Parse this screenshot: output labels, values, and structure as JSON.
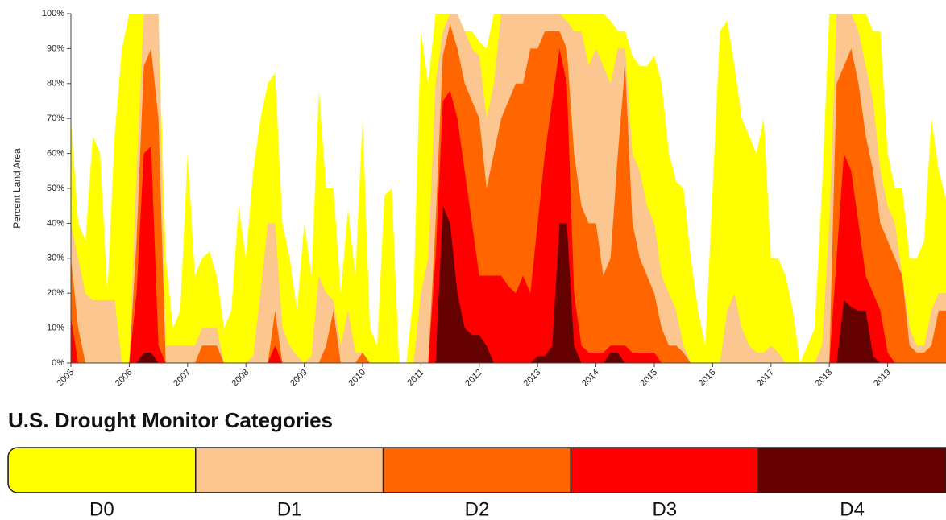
{
  "chart_data": {
    "type": "area",
    "y_label": "Percent Land Area",
    "legend_title": "U.S. Drought Monitor Categories",
    "x": [
      2005,
      2005.125,
      2005.25,
      2005.375,
      2005.5,
      2005.625,
      2005.75,
      2005.875,
      2006,
      2006.125,
      2006.25,
      2006.375,
      2006.5,
      2006.625,
      2006.75,
      2006.875,
      2007,
      2007.125,
      2007.25,
      2007.375,
      2007.5,
      2007.625,
      2007.75,
      2007.875,
      2008,
      2008.125,
      2008.25,
      2008.375,
      2008.5,
      2008.625,
      2008.75,
      2008.875,
      2009,
      2009.125,
      2009.25,
      2009.375,
      2009.5,
      2009.625,
      2009.75,
      2009.875,
      2010,
      2010.125,
      2010.25,
      2010.375,
      2010.5,
      2010.625,
      2010.75,
      2010.875,
      2011,
      2011.125,
      2011.25,
      2011.375,
      2011.5,
      2011.625,
      2011.75,
      2011.875,
      2012,
      2012.125,
      2012.25,
      2012.375,
      2012.5,
      2012.625,
      2012.75,
      2012.875,
      2013,
      2013.125,
      2013.25,
      2013.375,
      2013.5,
      2013.625,
      2013.75,
      2013.875,
      2014,
      2014.125,
      2014.25,
      2014.375,
      2014.5,
      2014.625,
      2014.75,
      2014.875,
      2015,
      2015.125,
      2015.25,
      2015.375,
      2015.5,
      2015.625,
      2015.75,
      2015.875,
      2016,
      2016.125,
      2016.25,
      2016.375,
      2016.5,
      2016.625,
      2016.75,
      2016.875,
      2017,
      2017.125,
      2017.25,
      2017.375,
      2017.5,
      2017.625,
      2017.75,
      2017.875,
      2018,
      2018.125,
      2018.25,
      2018.375,
      2018.5,
      2018.625,
      2018.75,
      2018.875,
      2019,
      2019.125,
      2019.25,
      2019.375,
      2019.5,
      2019.625,
      2019.75,
      2019.875,
      2020
    ],
    "series": [
      {
        "name": "D0",
        "color": "#ffff00",
        "values": [
          70,
          40,
          35,
          65,
          60,
          20,
          65,
          90,
          100,
          100,
          100,
          100,
          100,
          30,
          10,
          15,
          60,
          25,
          30,
          32,
          25,
          10,
          15,
          45,
          30,
          55,
          70,
          80,
          83,
          40,
          30,
          15,
          40,
          25,
          78,
          50,
          50,
          20,
          44,
          25,
          70,
          10,
          5,
          48,
          50,
          0,
          0,
          20,
          95,
          80,
          100,
          100,
          100,
          100,
          95,
          95,
          92,
          90,
          100,
          100,
          100,
          100,
          100,
          100,
          100,
          100,
          100,
          100,
          100,
          100,
          100,
          100,
          100,
          100,
          98,
          95,
          95,
          88,
          85,
          85,
          88,
          80,
          60,
          52,
          50,
          30,
          15,
          5,
          50,
          95,
          98,
          85,
          70,
          65,
          60,
          70,
          30,
          30,
          25,
          15,
          0,
          5,
          10,
          50,
          100,
          100,
          100,
          100,
          100,
          100,
          95,
          95,
          60,
          50,
          50,
          30,
          30,
          35,
          70,
          55,
          47
        ]
      },
      {
        "name": "D1",
        "color": "#fcc691",
        "values": [
          40,
          30,
          20,
          18,
          18,
          18,
          18,
          0,
          0,
          55,
          100,
          100,
          100,
          5,
          5,
          5,
          5,
          5,
          10,
          10,
          10,
          0,
          0,
          0,
          0,
          2,
          20,
          40,
          40,
          10,
          5,
          2,
          0,
          2,
          25,
          20,
          18,
          5,
          15,
          3,
          3,
          0,
          0,
          0,
          0,
          0,
          0,
          0,
          20,
          30,
          80,
          95,
          100,
          100,
          95,
          90,
          88,
          70,
          80,
          100,
          100,
          100,
          100,
          100,
          100,
          100,
          100,
          100,
          98,
          95,
          95,
          85,
          90,
          85,
          80,
          90,
          90,
          60,
          55,
          45,
          40,
          25,
          20,
          15,
          5,
          0,
          0,
          0,
          0,
          0,
          15,
          20,
          10,
          5,
          3,
          3,
          5,
          3,
          0,
          0,
          0,
          0,
          0,
          5,
          40,
          100,
          100,
          100,
          95,
          85,
          75,
          55,
          45,
          40,
          25,
          10,
          5,
          5,
          15,
          20,
          20
        ]
      },
      {
        "name": "D2",
        "color": "#ff6600",
        "values": [
          30,
          10,
          0,
          0,
          0,
          0,
          0,
          0,
          0,
          35,
          85,
          90,
          70,
          0,
          0,
          0,
          0,
          0,
          5,
          5,
          5,
          0,
          0,
          0,
          0,
          0,
          0,
          0,
          15,
          0,
          0,
          0,
          0,
          0,
          0,
          5,
          15,
          0,
          0,
          0,
          3,
          0,
          0,
          0,
          0,
          0,
          0,
          0,
          0,
          0,
          40,
          88,
          97,
          90,
          80,
          75,
          70,
          50,
          60,
          70,
          75,
          80,
          80,
          90,
          90,
          95,
          95,
          95,
          90,
          60,
          45,
          40,
          40,
          25,
          30,
          60,
          85,
          40,
          30,
          25,
          20,
          10,
          5,
          5,
          3,
          0,
          0,
          0,
          0,
          0,
          0,
          0,
          0,
          0,
          0,
          0,
          0,
          0,
          0,
          0,
          0,
          0,
          0,
          0,
          0,
          80,
          85,
          90,
          80,
          65,
          55,
          40,
          35,
          30,
          25,
          5,
          3,
          3,
          5,
          15,
          15
        ]
      },
      {
        "name": "D3",
        "color": "#ff0000",
        "values": [
          13,
          0,
          0,
          0,
          0,
          0,
          0,
          0,
          0,
          20,
          60,
          62,
          5,
          0,
          0,
          0,
          0,
          0,
          0,
          0,
          0,
          0,
          0,
          0,
          0,
          0,
          0,
          0,
          5,
          0,
          0,
          0,
          0,
          0,
          0,
          0,
          0,
          0,
          0,
          0,
          0,
          0,
          0,
          0,
          0,
          0,
          0,
          0,
          0,
          0,
          30,
          75,
          78,
          70,
          55,
          40,
          25,
          25,
          25,
          25,
          22,
          20,
          25,
          20,
          40,
          60,
          75,
          90,
          80,
          20,
          5,
          3,
          3,
          3,
          5,
          5,
          5,
          3,
          3,
          3,
          3,
          0,
          0,
          0,
          0,
          0,
          0,
          0,
          0,
          0,
          0,
          0,
          0,
          0,
          0,
          0,
          0,
          0,
          0,
          0,
          0,
          0,
          0,
          0,
          0,
          30,
          60,
          55,
          40,
          25,
          20,
          15,
          3,
          0,
          0,
          0,
          0,
          0,
          0,
          0,
          0
        ]
      },
      {
        "name": "D4",
        "color": "#650000",
        "values": [
          0,
          0,
          0,
          0,
          0,
          0,
          0,
          0,
          0,
          0,
          3,
          3,
          0,
          0,
          0,
          0,
          0,
          0,
          0,
          0,
          0,
          0,
          0,
          0,
          0,
          0,
          0,
          0,
          0,
          0,
          0,
          0,
          0,
          0,
          0,
          0,
          0,
          0,
          0,
          0,
          0,
          0,
          0,
          0,
          0,
          0,
          0,
          0,
          0,
          0,
          0,
          45,
          40,
          20,
          10,
          8,
          8,
          5,
          0,
          0,
          0,
          0,
          0,
          0,
          2,
          2,
          5,
          40,
          40,
          5,
          0,
          0,
          0,
          0,
          3,
          3,
          0,
          0,
          0,
          0,
          0,
          0,
          0,
          0,
          0,
          0,
          0,
          0,
          0,
          0,
          0,
          0,
          0,
          0,
          0,
          0,
          0,
          0,
          0,
          0,
          0,
          0,
          0,
          0,
          0,
          0,
          18,
          16,
          15,
          15,
          2,
          0,
          0,
          0,
          0,
          0,
          0,
          0,
          0,
          0,
          0
        ]
      }
    ],
    "xlim": [
      2005,
      2020
    ],
    "xticks": [
      2005,
      2006,
      2007,
      2008,
      2009,
      2010,
      2011,
      2012,
      2013,
      2014,
      2015,
      2016,
      2017,
      2018,
      2019
    ],
    "ylim": [
      0,
      100
    ],
    "yticks": [
      {
        "value": 0,
        "label": "0%"
      },
      {
        "value": 10,
        "label": "10%"
      },
      {
        "value": 20,
        "label": "20%"
      },
      {
        "value": 30,
        "label": "30%"
      },
      {
        "value": 40,
        "label": "40%"
      },
      {
        "value": 50,
        "label": "50%"
      },
      {
        "value": 60,
        "label": "60%"
      },
      {
        "value": 70,
        "label": "70%"
      },
      {
        "value": 80,
        "label": "80%"
      },
      {
        "value": 90,
        "label": "90%"
      },
      {
        "value": 100,
        "label": "100%"
      }
    ],
    "legend_position": "bottom"
  }
}
